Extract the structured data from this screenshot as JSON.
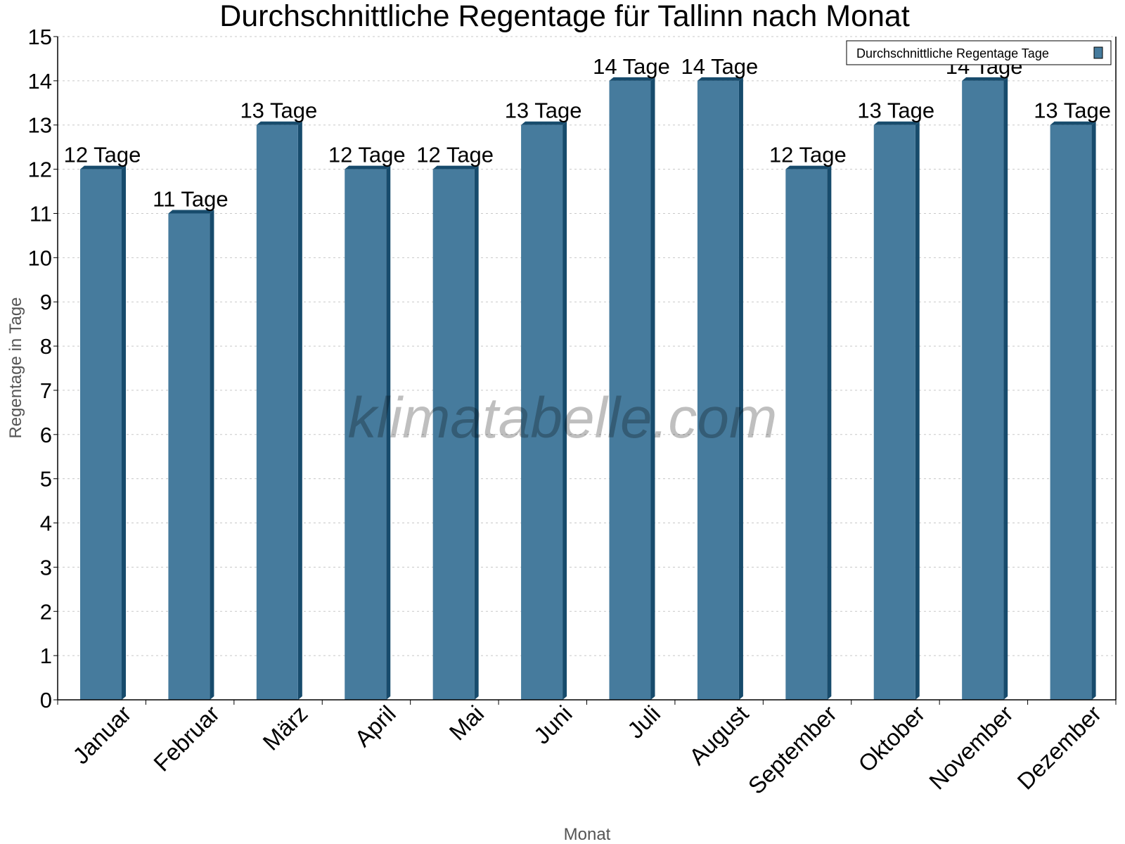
{
  "chart_data": {
    "type": "bar",
    "title": "Durchschnittliche Regentage für Tallinn nach Monat",
    "xlabel": "Monat",
    "ylabel": "Regentage in Tage",
    "ylim": [
      0,
      15
    ],
    "yticks": [
      0,
      1,
      2,
      3,
      4,
      5,
      6,
      7,
      8,
      9,
      10,
      11,
      12,
      13,
      14,
      15
    ],
    "grid": true,
    "legend_position": "top-right",
    "categories": [
      "Januar",
      "Februar",
      "März",
      "April",
      "Mai",
      "Juni",
      "Juli",
      "August",
      "September",
      "Oktober",
      "November",
      "Dezember"
    ],
    "series": [
      {
        "name": "Durchschnittliche Regentage Tage",
        "values": [
          12,
          11,
          13,
          12,
          12,
          13,
          14,
          14,
          12,
          13,
          14,
          13
        ],
        "data_labels": [
          "12 Tage",
          "11 Tage",
          "13 Tage",
          "12 Tage",
          "12 Tage",
          "13 Tage",
          "14 Tage",
          "14 Tage",
          "12 Tage",
          "13 Tage",
          "14 Tage",
          "13 Tage"
        ],
        "color": "#467b9d",
        "shade_color": "#174b6c"
      }
    ],
    "watermark": "klimatabelle.com"
  }
}
